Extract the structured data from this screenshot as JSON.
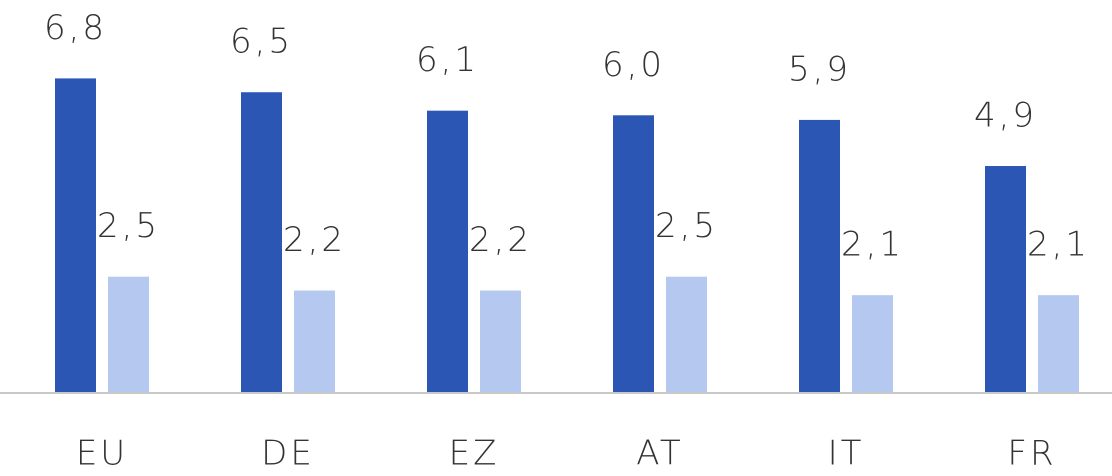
{
  "chart_data": {
    "type": "bar",
    "categories": [
      "EU",
      "DE",
      "EZ",
      "AT",
      "IT",
      "FR"
    ],
    "series": [
      {
        "color": "#2b56b3",
        "values": [
          6.8,
          6.5,
          6.1,
          6.0,
          5.9,
          4.9
        ],
        "value_labels": [
          "6,8",
          "6,5",
          "6,1",
          "6,0",
          "5,9",
          "4,9"
        ]
      },
      {
        "color": "#b5c9f0",
        "values": [
          2.5,
          2.2,
          2.2,
          2.5,
          2.1,
          2.1
        ],
        "value_labels": [
          "2,5",
          "2,2",
          "2,2",
          "2,5",
          "2,1",
          "2,1"
        ]
      }
    ],
    "ylim": [
      0,
      8.5
    ]
  }
}
